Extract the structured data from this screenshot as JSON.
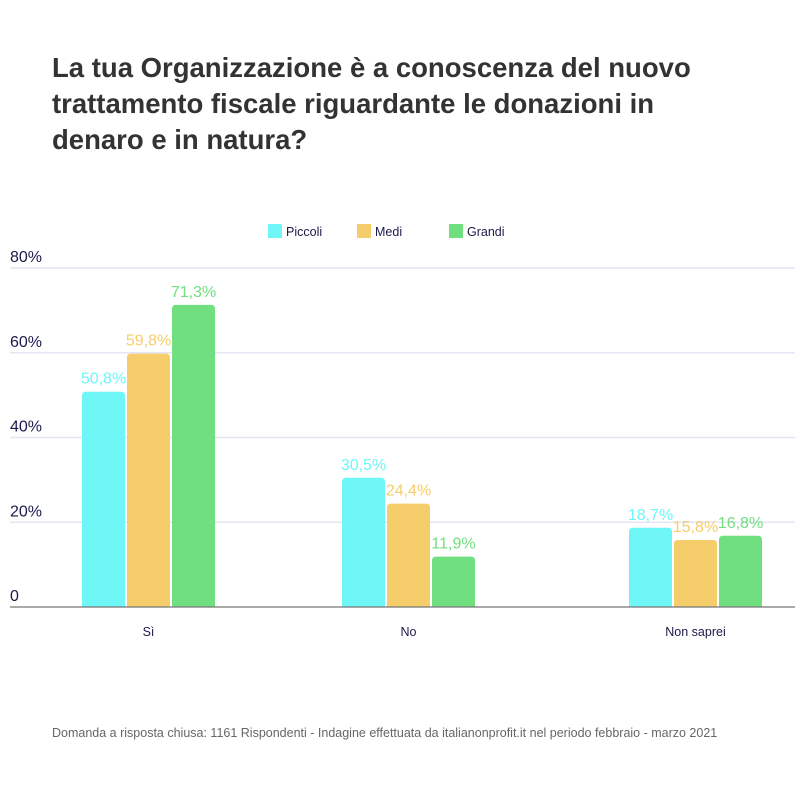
{
  "title": "La tua Organizzazione è a conoscenza del nuovo trattamento fiscale riguardante le donazioni in denaro e in natura?",
  "footnote": "Domanda a risposta chiusa: 1161 Rispondenti - Indagine effettuata da italianonprofit.it nel periodo febbraio - marzo 2021",
  "chart_data": {
    "type": "bar",
    "title": "La tua Organizzazione è a conoscenza del nuovo trattamento fiscale riguardante le donazioni in denaro e in natura?",
    "categories": [
      "Sì",
      "No",
      "Non saprei"
    ],
    "series": [
      {
        "name": "Piccoli",
        "color": "#6ff6f7",
        "values": [
          50.8,
          30.5,
          18.7
        ],
        "labels": [
          "50,8%",
          "30,5%",
          "18,7%"
        ]
      },
      {
        "name": "Medi",
        "color": "#f5cd6a",
        "values": [
          59.8,
          24.4,
          15.8
        ],
        "labels": [
          "59,8%",
          "24,4%",
          "15,8%"
        ]
      },
      {
        "name": "Grandi",
        "color": "#6fdf7f",
        "values": [
          71.3,
          11.9,
          16.8
        ],
        "labels": [
          "71,3%",
          "11,9%",
          "16,8%"
        ]
      }
    ],
    "yticks": [
      0,
      20,
      40,
      60,
      80
    ],
    "ytick_labels": [
      "0",
      "20%",
      "40%",
      "60%",
      "80%"
    ],
    "ylim": [
      0,
      80
    ],
    "grid": true,
    "legend": "top-center"
  }
}
